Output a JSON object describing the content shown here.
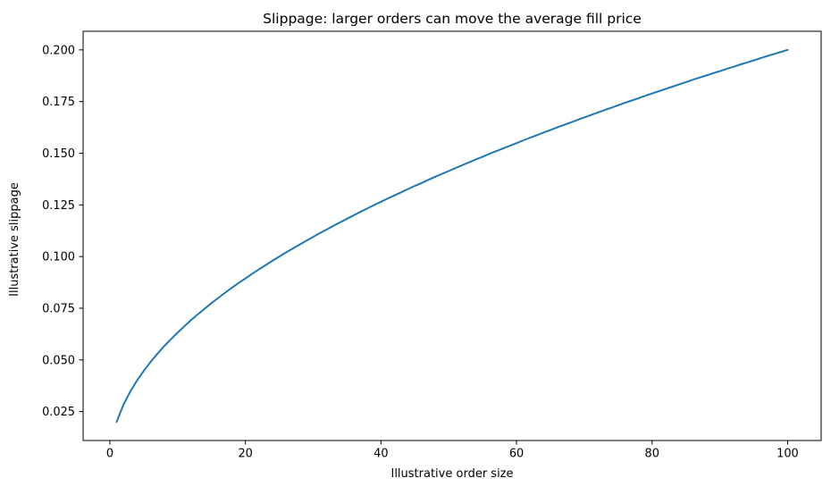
{
  "figure": {
    "background": "#ffffff"
  },
  "chart_data": {
    "type": "line",
    "title": "Slippage: larger orders can move the average fill price",
    "xlabel": "Illustrative order size",
    "ylabel": "Illustrative slippage",
    "xlim": [
      -3.95,
      104.95
    ],
    "ylim": [
      0.011,
      0.209
    ],
    "grid": false,
    "legend": "none",
    "axes_color": "#000000",
    "text_color": "#000000",
    "xticks": {
      "values": [
        0,
        20,
        40,
        60,
        80,
        100
      ],
      "labels": [
        "0",
        "20",
        "40",
        "60",
        "80",
        "100"
      ]
    },
    "yticks": {
      "values": [
        0.025,
        0.05,
        0.075,
        0.1,
        0.125,
        0.15,
        0.175,
        0.2
      ],
      "labels": [
        "0.025",
        "0.050",
        "0.075",
        "0.100",
        "0.125",
        "0.150",
        "0.175",
        "0.200"
      ]
    },
    "series": [
      {
        "name": "illustrative-slippage-curve",
        "color": "#1f77b4",
        "line_width": 2,
        "x": [
          1,
          2,
          3,
          4,
          5,
          6,
          7,
          8,
          9,
          10,
          11,
          12,
          13,
          14,
          15,
          16,
          17,
          18,
          19,
          20,
          21,
          22,
          23,
          24,
          25,
          26,
          27,
          28,
          29,
          30,
          31,
          32,
          33,
          34,
          35,
          36,
          37,
          38,
          39,
          40,
          41,
          42,
          43,
          44,
          45,
          46,
          47,
          48,
          49,
          50,
          51,
          52,
          53,
          54,
          55,
          56,
          57,
          58,
          59,
          60,
          61,
          62,
          63,
          64,
          65,
          66,
          67,
          68,
          69,
          70,
          71,
          72,
          73,
          74,
          75,
          76,
          77,
          78,
          79,
          80,
          81,
          82,
          83,
          84,
          85,
          86,
          87,
          88,
          89,
          90,
          91,
          92,
          93,
          94,
          95,
          96,
          97,
          98,
          99,
          100
        ],
        "y": [
          0.02,
          0.0283,
          0.0346,
          0.04,
          0.0447,
          0.049,
          0.0529,
          0.0566,
          0.06,
          0.0632,
          0.0663,
          0.0693,
          0.0721,
          0.0748,
          0.0775,
          0.08,
          0.0825,
          0.0849,
          0.0872,
          0.0894,
          0.0917,
          0.0938,
          0.0959,
          0.098,
          0.1,
          0.102,
          0.1039,
          0.1058,
          0.1077,
          0.1095,
          0.1114,
          0.1131,
          0.1149,
          0.1166,
          0.1183,
          0.12,
          0.1217,
          0.1233,
          0.1249,
          0.1265,
          0.1281,
          0.1296,
          0.1311,
          0.1327,
          0.1342,
          0.1356,
          0.1371,
          0.1386,
          0.14,
          0.1414,
          0.1428,
          0.1442,
          0.1456,
          0.147,
          0.1483,
          0.1497,
          0.151,
          0.1523,
          0.1536,
          0.1549,
          0.1562,
          0.1575,
          0.1587,
          0.16,
          0.1612,
          0.1625,
          0.1637,
          0.1649,
          0.1661,
          0.1673,
          0.1685,
          0.1697,
          0.1709,
          0.172,
          0.1732,
          0.1744,
          0.1755,
          0.1766,
          0.1778,
          0.1789,
          0.18,
          0.1811,
          0.1822,
          0.1833,
          0.1844,
          0.1855,
          0.1866,
          0.1876,
          0.1887,
          0.1897,
          0.1908,
          0.1918,
          0.1929,
          0.1939,
          0.1949,
          0.196,
          0.197,
          0.198,
          0.199,
          0.2
        ]
      }
    ]
  }
}
